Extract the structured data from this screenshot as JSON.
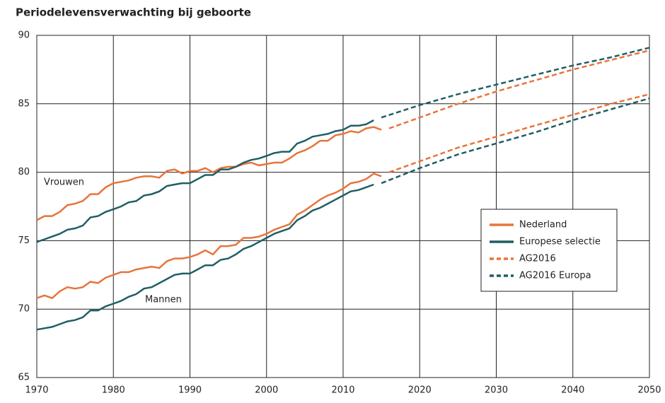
{
  "chart_data": {
    "type": "line",
    "title": "Periodelevensverwachting bij geboorte",
    "annotations": [
      "Vrouwen",
      "Mannen"
    ],
    "xlim": [
      1970,
      2050
    ],
    "xticks": [
      1970,
      1980,
      1990,
      2000,
      2010,
      2020,
      2030,
      2040,
      2050
    ],
    "ylim": [
      65,
      90
    ],
    "yticks": [
      65,
      70,
      75,
      80,
      85,
      90
    ],
    "grid": true,
    "legend": "right",
    "series": [
      {
        "name": "Nederland",
        "color": "#e8743b",
        "dashed": false,
        "x": [
          1970,
          1971,
          1972,
          1973,
          1974,
          1975,
          1976,
          1977,
          1978,
          1979,
          1980,
          1981,
          1982,
          1983,
          1984,
          1985,
          1986,
          1987,
          1988,
          1989,
          1990,
          1991,
          1992,
          1993,
          1994,
          1995,
          1996,
          1997,
          1998,
          1999,
          2000,
          2001,
          2002,
          2003,
          2004,
          2005,
          2006,
          2007,
          2008,
          2009,
          2010,
          2011,
          2012,
          2013,
          2014,
          2015
        ],
        "values_women": [
          76.5,
          76.8,
          76.8,
          77.1,
          77.6,
          77.7,
          77.9,
          78.4,
          78.4,
          78.9,
          79.2,
          79.3,
          79.4,
          79.6,
          79.7,
          79.7,
          79.6,
          80.1,
          80.2,
          79.9,
          80.1,
          80.1,
          80.3,
          80.0,
          80.3,
          80.4,
          80.4,
          80.6,
          80.7,
          80.5,
          80.6,
          80.7,
          80.7,
          81.0,
          81.4,
          81.6,
          81.9,
          82.3,
          82.3,
          82.7,
          82.8,
          83.0,
          82.9,
          83.2,
          83.3,
          83.1
        ],
        "values_men": [
          70.8,
          71.0,
          70.8,
          71.3,
          71.6,
          71.5,
          71.6,
          72.0,
          71.9,
          72.3,
          72.5,
          72.7,
          72.7,
          72.9,
          73.0,
          73.1,
          73.0,
          73.5,
          73.7,
          73.7,
          73.8,
          74.0,
          74.3,
          74.0,
          74.6,
          74.6,
          74.7,
          75.2,
          75.2,
          75.3,
          75.5,
          75.8,
          76.0,
          76.2,
          76.9,
          77.2,
          77.6,
          78.0,
          78.3,
          78.5,
          78.8,
          79.2,
          79.3,
          79.5,
          79.9,
          79.7
        ]
      },
      {
        "name": "Europese selectie",
        "color": "#1f5f64",
        "dashed": false,
        "x": [
          1970,
          1971,
          1972,
          1973,
          1974,
          1975,
          1976,
          1977,
          1978,
          1979,
          1980,
          1981,
          1982,
          1983,
          1984,
          1985,
          1986,
          1987,
          1988,
          1989,
          1990,
          1991,
          1992,
          1993,
          1994,
          1995,
          1996,
          1997,
          1998,
          1999,
          2000,
          2001,
          2002,
          2003,
          2004,
          2005,
          2006,
          2007,
          2008,
          2009,
          2010,
          2011,
          2012,
          2013,
          2014
        ],
        "values_women": [
          74.9,
          75.1,
          75.3,
          75.5,
          75.8,
          75.9,
          76.1,
          76.7,
          76.8,
          77.1,
          77.3,
          77.5,
          77.8,
          77.9,
          78.3,
          78.4,
          78.6,
          79.0,
          79.1,
          79.2,
          79.2,
          79.5,
          79.8,
          79.8,
          80.2,
          80.2,
          80.4,
          80.7,
          80.9,
          81.0,
          81.2,
          81.4,
          81.5,
          81.5,
          82.1,
          82.3,
          82.6,
          82.7,
          82.8,
          83.0,
          83.1,
          83.4,
          83.4,
          83.5,
          83.8
        ],
        "values_men": [
          68.5,
          68.6,
          68.7,
          68.9,
          69.1,
          69.2,
          69.4,
          69.9,
          69.9,
          70.2,
          70.4,
          70.6,
          70.9,
          71.1,
          71.5,
          71.6,
          71.9,
          72.2,
          72.5,
          72.6,
          72.6,
          72.9,
          73.2,
          73.2,
          73.6,
          73.7,
          74.0,
          74.4,
          74.6,
          74.9,
          75.2,
          75.5,
          75.7,
          75.9,
          76.5,
          76.8,
          77.2,
          77.4,
          77.7,
          78.0,
          78.3,
          78.6,
          78.7,
          78.9,
          79.1
        ]
      },
      {
        "name": "AG2016",
        "color": "#e8743b",
        "dashed": true,
        "x": [
          2016,
          2020,
          2025,
          2030,
          2035,
          2040,
          2045,
          2050
        ],
        "values_women": [
          83.2,
          84.0,
          85.0,
          85.9,
          86.7,
          87.5,
          88.2,
          88.9
        ],
        "values_men": [
          80.0,
          80.8,
          81.8,
          82.6,
          83.4,
          84.2,
          85.0,
          85.7
        ]
      },
      {
        "name": "AG2016 Europa",
        "color": "#1f5f64",
        "dashed": true,
        "x": [
          2015,
          2020,
          2025,
          2030,
          2035,
          2040,
          2045,
          2050
        ],
        "values_women": [
          84.0,
          84.9,
          85.7,
          86.4,
          87.1,
          87.8,
          88.4,
          89.1
        ],
        "values_men": [
          79.2,
          80.3,
          81.3,
          82.1,
          82.9,
          83.8,
          84.6,
          85.4
        ]
      }
    ]
  }
}
